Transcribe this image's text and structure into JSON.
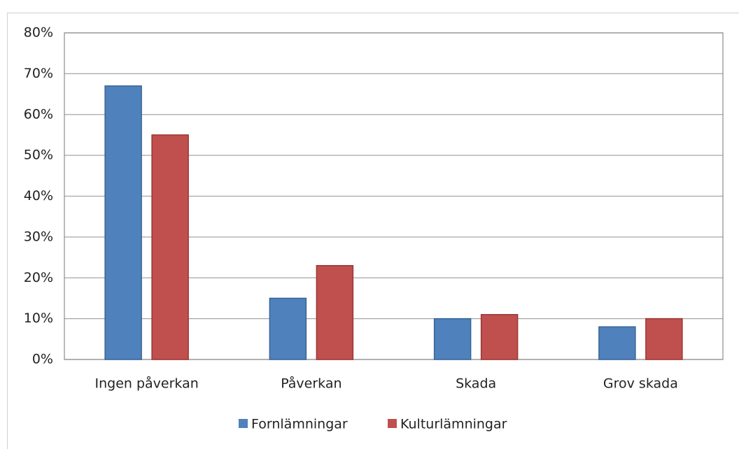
{
  "chart_data": {
    "type": "bar",
    "categories": [
      "Ingen påverkan",
      "Påverkan",
      "Skada",
      "Grov skada"
    ],
    "series": [
      {
        "name": "Fornlämningar",
        "color": "#4f81bd",
        "values": [
          67,
          15,
          10,
          8
        ]
      },
      {
        "name": "Kulturlämningar",
        "color": "#c0504d",
        "values": [
          55,
          23,
          11,
          10
        ]
      }
    ],
    "ylim": [
      0,
      80
    ],
    "yticks": [
      {
        "value": 0,
        "label": "0%"
      },
      {
        "value": 10,
        "label": "10%"
      },
      {
        "value": 20,
        "label": "20%"
      },
      {
        "value": 30,
        "label": "30%"
      },
      {
        "value": 40,
        "label": "40%"
      },
      {
        "value": 50,
        "label": "50%"
      },
      {
        "value": 60,
        "label": "60%"
      },
      {
        "value": 70,
        "label": "70%"
      },
      {
        "value": 80,
        "label": "80%"
      }
    ],
    "grid": true,
    "legend": "bottom"
  }
}
